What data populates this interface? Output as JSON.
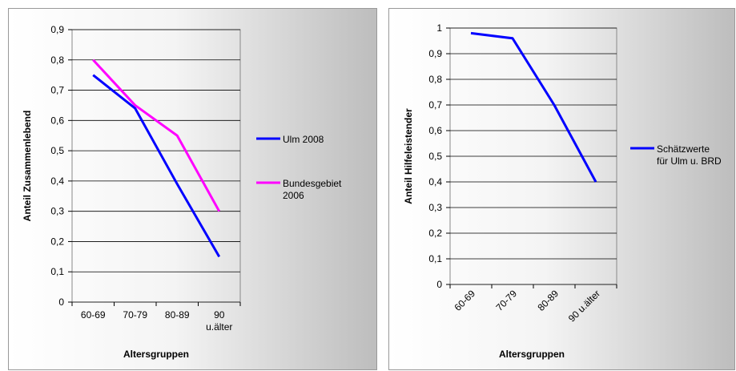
{
  "chart_data": [
    {
      "type": "line",
      "x_label": "Altersgruppen",
      "y_label": "Anteil Zusammenlebend",
      "categories": [
        "60-69",
        "70-79",
        "80-89",
        "90 u.älter"
      ],
      "series": [
        {
          "name": "Ulm 2008",
          "color": "#0000ff",
          "values": [
            0.75,
            0.64,
            0.39,
            0.15
          ]
        },
        {
          "name": "Bundesgebiet 2006",
          "color": "#ff00ff",
          "values": [
            0.8,
            0.65,
            0.55,
            0.3
          ]
        }
      ],
      "ylim": [
        0,
        0.9
      ],
      "yticks": [
        0,
        {
          "value": 0.1,
          "label": "0,1"
        },
        {
          "value": 0.2,
          "label": "0,2"
        },
        {
          "value": 0.3,
          "label": "0,3"
        },
        {
          "value": 0.4,
          "label": "0,4"
        },
        {
          "value": 0.5,
          "label": "0,5"
        },
        {
          "value": 0.6,
          "label": "0,6"
        },
        {
          "value": 0.7,
          "label": "0,7"
        },
        {
          "value": 0.8,
          "label": "0,8"
        },
        {
          "value": 0.9,
          "label": "0,9"
        }
      ],
      "grid": true
    },
    {
      "type": "line",
      "x_label": "Altersgruppen",
      "y_label": "Anteil Hilfeleistender",
      "categories": [
        "60-69",
        "70-79",
        "80-89",
        "90 u.älter"
      ],
      "series": [
        {
          "name": "Schätzwerte für Ulm u. BRD",
          "color": "#0000ff",
          "values": [
            0.98,
            0.96,
            0.7,
            0.4
          ]
        }
      ],
      "ylim": [
        0,
        1
      ],
      "yticks": [
        0,
        {
          "value": 0.1,
          "label": "0,1"
        },
        {
          "value": 0.2,
          "label": "0,2"
        },
        {
          "value": 0.3,
          "label": "0,3"
        },
        {
          "value": 0.4,
          "label": "0,4"
        },
        {
          "value": 0.5,
          "label": "0,5"
        },
        {
          "value": 0.6,
          "label": "0,6"
        },
        {
          "value": 0.7,
          "label": "0,7"
        },
        {
          "value": 0.8,
          "label": "0,8"
        },
        {
          "value": 0.9,
          "label": "0,9"
        },
        1
      ],
      "grid": true
    }
  ]
}
